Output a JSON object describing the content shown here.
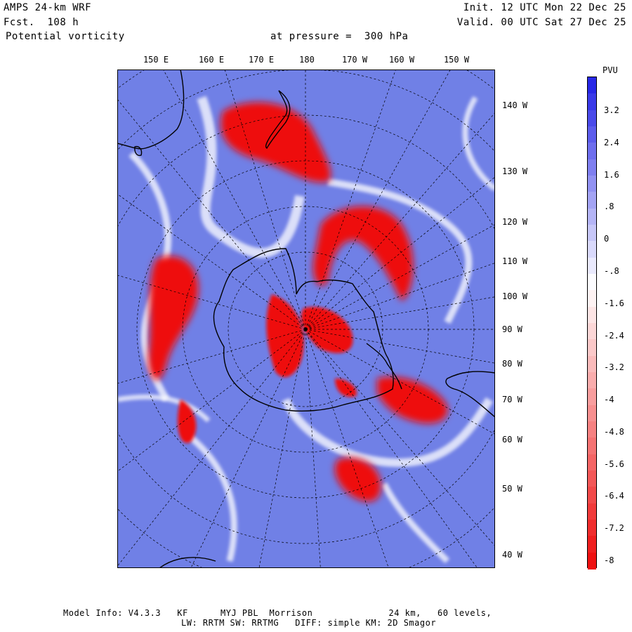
{
  "header": {
    "model": "AMPS 24-km WRF",
    "forecast": "Fcst.  108 h",
    "field": "Potential vorticity",
    "level": "at pressure =  300 hPa",
    "init": "Init. 12 UTC Mon 22 Dec 25",
    "valid": "Valid. 00 UTC Sat 27 Dec 25"
  },
  "map": {
    "top_lon_labels": [
      "150 E",
      "160 E",
      "170 E",
      "180",
      "170 W",
      "160 W",
      "150 W"
    ],
    "right_lon_labels": [
      "140 W",
      "130 W",
      "120 W",
      "110 W",
      "100 W",
      "90 W",
      "80 W",
      "70 W",
      "60 W",
      "50 W",
      "40 W"
    ],
    "colors": {
      "positive": "#7080e6",
      "negative": "#ee1111",
      "neutral": "#ffffff",
      "coast": "#000000",
      "grid": "#000000"
    }
  },
  "colorbar": {
    "unit": "PVU",
    "labels": [
      "3.2",
      "2.4",
      "1.6",
      ".8",
      "0",
      "-.8",
      "-1.6",
      "-2.4",
      "-3.2",
      "-4",
      "-4.8",
      "-5.6",
      "-6.4",
      "-7.2",
      "-8"
    ]
  },
  "footer": {
    "line1": "Model Info: V4.3.3   KF      MYJ PBL  Morrison              24 km,   60 levels,",
    "line2": "LW: RRTM SW: RRTMG   DIFF: simple KM: 2D Smagor"
  }
}
